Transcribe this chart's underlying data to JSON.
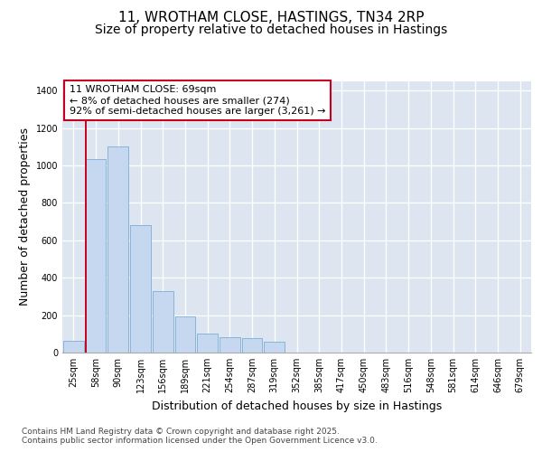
{
  "title_line1": "11, WROTHAM CLOSE, HASTINGS, TN34 2RP",
  "title_line2": "Size of property relative to detached houses in Hastings",
  "xlabel": "Distribution of detached houses by size in Hastings",
  "ylabel": "Number of detached properties",
  "categories": [
    "25sqm",
    "58sqm",
    "90sqm",
    "123sqm",
    "156sqm",
    "189sqm",
    "221sqm",
    "254sqm",
    "287sqm",
    "319sqm",
    "352sqm",
    "385sqm",
    "417sqm",
    "450sqm",
    "483sqm",
    "516sqm",
    "548sqm",
    "581sqm",
    "614sqm",
    "646sqm",
    "679sqm"
  ],
  "values": [
    65,
    1035,
    1100,
    680,
    330,
    195,
    100,
    80,
    75,
    60,
    0,
    0,
    0,
    0,
    0,
    0,
    0,
    0,
    0,
    0,
    0
  ],
  "bar_color": "#c5d8f0",
  "bar_edge_color": "#7aadd4",
  "highlight_color": "#c6001e",
  "annotation_text": "11 WROTHAM CLOSE: 69sqm\n← 8% of detached houses are smaller (274)\n92% of semi-detached houses are larger (3,261) →",
  "vline_x_index": 0.57,
  "ylim": [
    0,
    1450
  ],
  "yticks": [
    0,
    200,
    400,
    600,
    800,
    1000,
    1200,
    1400
  ],
  "plot_bg_color": "#dde6f0",
  "grid_color": "#ffffff",
  "fig_bg_color": "#ffffff",
  "footer_text": "Contains HM Land Registry data © Crown copyright and database right 2025.\nContains public sector information licensed under the Open Government Licence v3.0.",
  "title_fontsize": 11,
  "subtitle_fontsize": 10,
  "axis_label_fontsize": 9,
  "tick_fontsize": 7,
  "annotation_fontsize": 8,
  "footer_fontsize": 6.5
}
